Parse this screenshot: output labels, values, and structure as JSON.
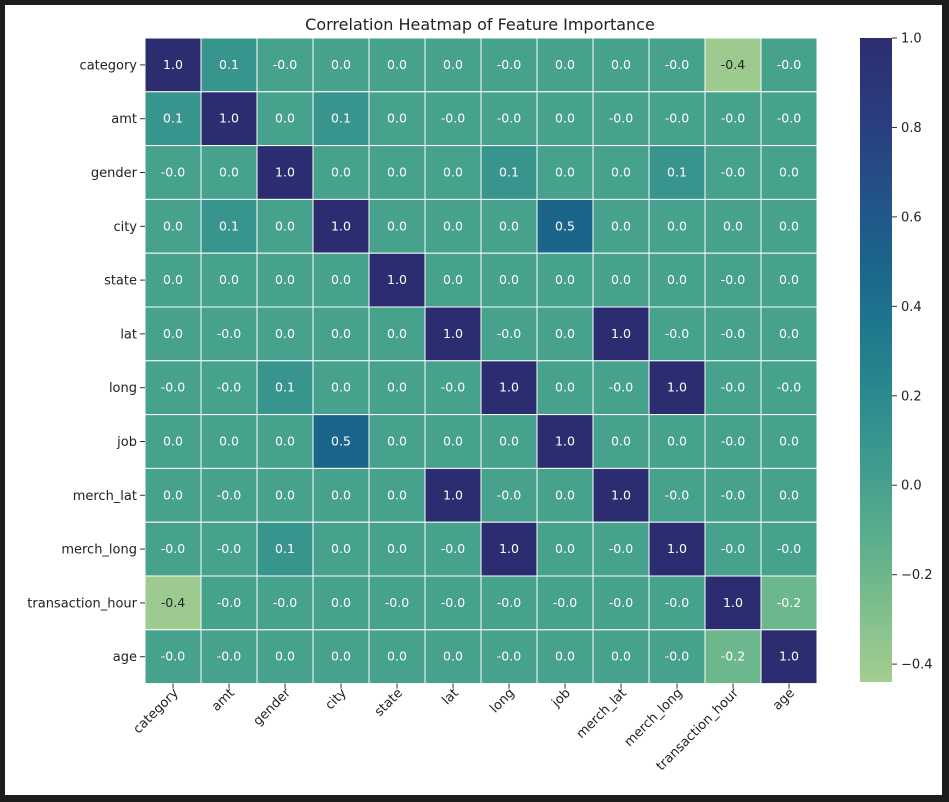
{
  "chart_data": {
    "type": "heatmap",
    "title": "Correlation Heatmap of Feature Importance",
    "xlabel": "",
    "ylabel": "",
    "labels": [
      "category",
      "amt",
      "gender",
      "city",
      "state",
      "lat",
      "long",
      "job",
      "merch_lat",
      "merch_long",
      "transaction_hour",
      "age"
    ],
    "matrix": [
      [
        "1.0",
        "0.1",
        "-0.0",
        "0.0",
        "0.0",
        "0.0",
        "-0.0",
        "0.0",
        "0.0",
        "-0.0",
        "-0.4",
        "-0.0"
      ],
      [
        "0.1",
        "1.0",
        "0.0",
        "0.1",
        "0.0",
        "-0.0",
        "-0.0",
        "0.0",
        "-0.0",
        "-0.0",
        "-0.0",
        "-0.0"
      ],
      [
        "-0.0",
        "0.0",
        "1.0",
        "0.0",
        "0.0",
        "0.0",
        "0.1",
        "0.0",
        "0.0",
        "0.1",
        "-0.0",
        "0.0"
      ],
      [
        "0.0",
        "0.1",
        "0.0",
        "1.0",
        "0.0",
        "0.0",
        "0.0",
        "0.5",
        "0.0",
        "0.0",
        "0.0",
        "0.0"
      ],
      [
        "0.0",
        "0.0",
        "0.0",
        "0.0",
        "1.0",
        "0.0",
        "0.0",
        "0.0",
        "0.0",
        "0.0",
        "-0.0",
        "0.0"
      ],
      [
        "0.0",
        "-0.0",
        "0.0",
        "0.0",
        "0.0",
        "1.0",
        "-0.0",
        "0.0",
        "1.0",
        "-0.0",
        "-0.0",
        "0.0"
      ],
      [
        "-0.0",
        "-0.0",
        "0.1",
        "0.0",
        "0.0",
        "-0.0",
        "1.0",
        "0.0",
        "-0.0",
        "1.0",
        "-0.0",
        "-0.0"
      ],
      [
        "0.0",
        "0.0",
        "0.0",
        "0.5",
        "0.0",
        "0.0",
        "0.0",
        "1.0",
        "0.0",
        "0.0",
        "-0.0",
        "0.0"
      ],
      [
        "0.0",
        "-0.0",
        "0.0",
        "0.0",
        "0.0",
        "1.0",
        "-0.0",
        "0.0",
        "1.0",
        "-0.0",
        "-0.0",
        "0.0"
      ],
      [
        "-0.0",
        "-0.0",
        "0.1",
        "0.0",
        "0.0",
        "-0.0",
        "1.0",
        "0.0",
        "-0.0",
        "1.0",
        "-0.0",
        "-0.0"
      ],
      [
        "-0.4",
        "-0.0",
        "-0.0",
        "0.0",
        "-0.0",
        "-0.0",
        "-0.0",
        "-0.0",
        "-0.0",
        "-0.0",
        "1.0",
        "-0.2"
      ],
      [
        "-0.0",
        "-0.0",
        "0.0",
        "0.0",
        "0.0",
        "0.0",
        "-0.0",
        "0.0",
        "0.0",
        "-0.0",
        "-0.2",
        "1.0"
      ]
    ],
    "colorbar": {
      "min": -0.44,
      "max": 1.0,
      "ticks": [
        "1.0",
        "0.8",
        "0.6",
        "0.4",
        "0.2",
        "0.0",
        "−0.2",
        "−0.4"
      ],
      "tick_values": [
        1.0,
        0.8,
        0.6,
        0.4,
        0.2,
        0.0,
        -0.2,
        -0.4
      ],
      "colormap": "crest",
      "colors": [
        "#a5cd90",
        "#7fbf8c",
        "#5aae8c",
        "#3f9c8d",
        "#2c898d",
        "#1d768d",
        "#1c628a",
        "#244e86",
        "#2a3b7d",
        "#2c2d70"
      ]
    },
    "grid": true,
    "legend": "colorbar-right"
  }
}
